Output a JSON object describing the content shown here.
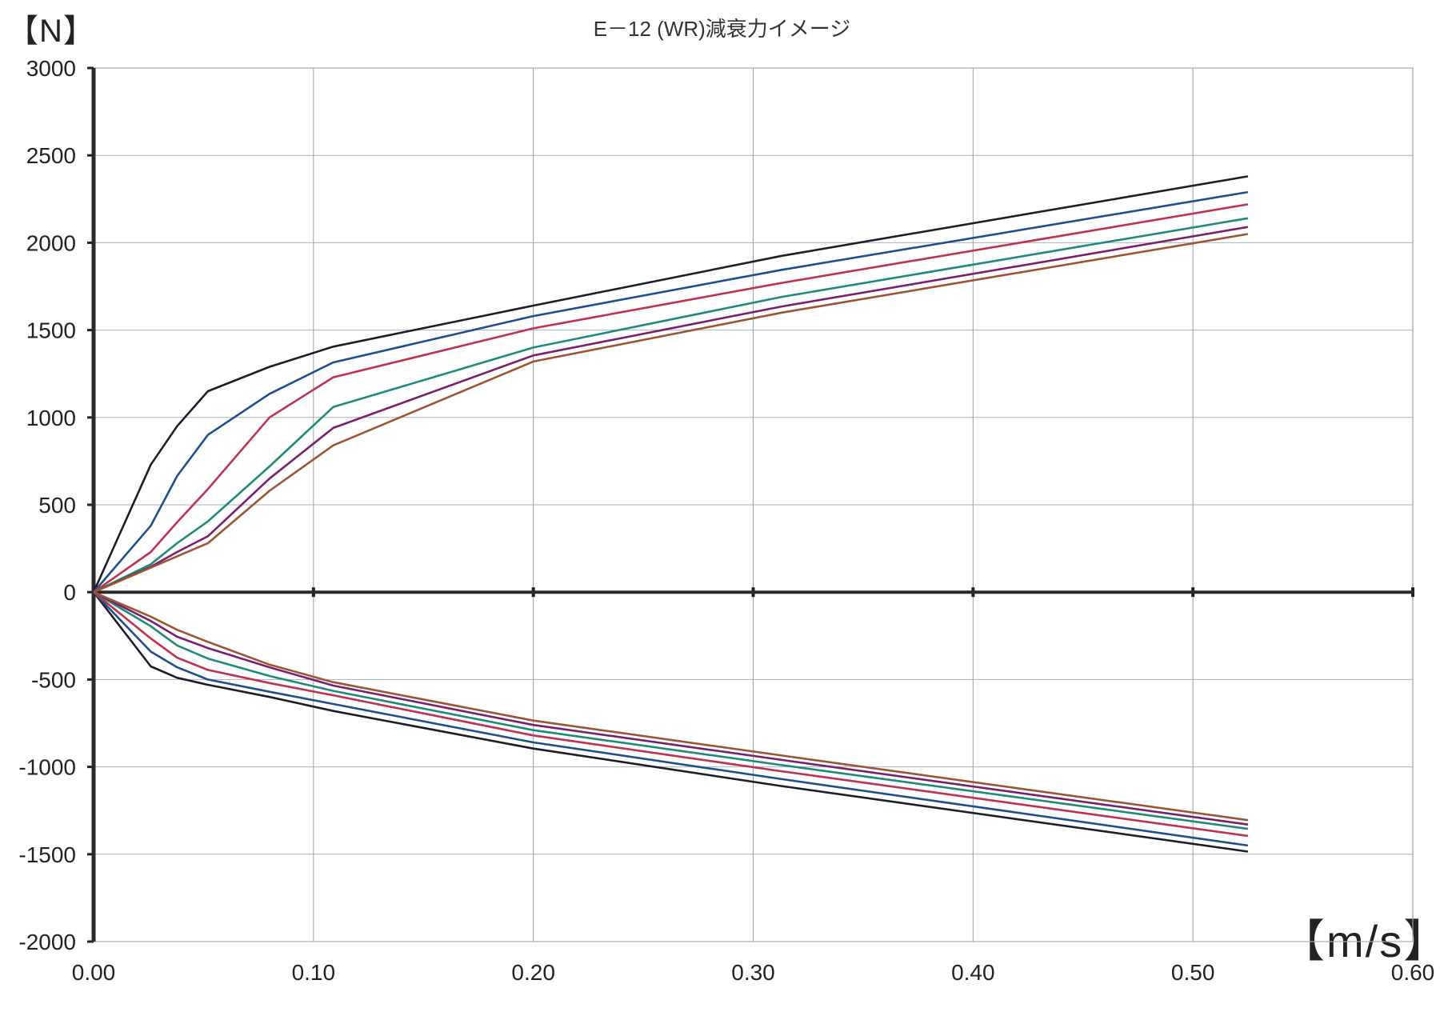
{
  "chart_data": {
    "type": "line",
    "title": "E－12 (WR)減衰力イメージ",
    "ylabel": "【N】",
    "xlabel": "【m/s】",
    "xlim": [
      0,
      0.6
    ],
    "ylim": [
      -2000,
      3000
    ],
    "x_ticks": [
      "0.00",
      "0.10",
      "0.20",
      "0.30",
      "0.40",
      "0.50",
      "0.60"
    ],
    "y_ticks": [
      "3000",
      "2500",
      "2000",
      "1500",
      "1000",
      "500",
      "0",
      "-500",
      "-1000",
      "-1500",
      "-2000"
    ],
    "grid": true,
    "legend": "none",
    "series": [
      {
        "color": "#1e1e2a",
        "x": [
          0,
          0.026,
          0.038,
          0.052,
          0.08,
          0.109,
          0.2,
          0.313,
          0.525
        ],
        "y": [
          0,
          730,
          950,
          1150,
          1290,
          1405,
          1640,
          1925,
          2380
        ]
      },
      {
        "color": "#1f4e8c",
        "x": [
          0,
          0.026,
          0.038,
          0.052,
          0.08,
          0.109,
          0.2,
          0.313,
          0.525
        ],
        "y": [
          0,
          380,
          665,
          900,
          1135,
          1315,
          1580,
          1845,
          2290
        ]
      },
      {
        "color": "#c0304f",
        "x": [
          0,
          0.026,
          0.038,
          0.052,
          0.08,
          0.109,
          0.2,
          0.313,
          0.525
        ],
        "y": [
          0,
          230,
          400,
          590,
          1000,
          1230,
          1510,
          1770,
          2220
        ]
      },
      {
        "color": "#1f8a7a",
        "x": [
          0,
          0.026,
          0.038,
          0.052,
          0.08,
          0.109,
          0.2,
          0.313,
          0.525
        ],
        "y": [
          0,
          160,
          280,
          405,
          720,
          1060,
          1400,
          1690,
          2140
        ]
      },
      {
        "color": "#7a1f6e",
        "x": [
          0,
          0.026,
          0.038,
          0.052,
          0.08,
          0.109,
          0.2,
          0.313,
          0.525
        ],
        "y": [
          0,
          145,
          230,
          320,
          650,
          940,
          1355,
          1635,
          2090
        ]
      },
      {
        "color": "#9c5533",
        "x": [
          0,
          0.026,
          0.038,
          0.052,
          0.08,
          0.109,
          0.2,
          0.313,
          0.525
        ],
        "y": [
          0,
          140,
          205,
          280,
          580,
          840,
          1320,
          1600,
          2050
        ]
      },
      {
        "color": "#1e1e2a",
        "x": [
          0,
          0.026,
          0.038,
          0.052,
          0.08,
          0.109,
          0.2,
          0.313,
          0.525
        ],
        "y": [
          0,
          -425,
          -490,
          -530,
          -600,
          -680,
          -895,
          -1110,
          -1485
        ]
      },
      {
        "color": "#1f4e8c",
        "x": [
          0,
          0.026,
          0.038,
          0.052,
          0.08,
          0.109,
          0.2,
          0.313,
          0.525
        ],
        "y": [
          0,
          -340,
          -430,
          -500,
          -570,
          -640,
          -860,
          -1070,
          -1450
        ]
      },
      {
        "color": "#c0304f",
        "x": [
          0,
          0.026,
          0.038,
          0.052,
          0.08,
          0.109,
          0.2,
          0.313,
          0.525
        ],
        "y": [
          0,
          -265,
          -375,
          -445,
          -520,
          -590,
          -820,
          -1025,
          -1395
        ]
      },
      {
        "color": "#1f8a7a",
        "x": [
          0,
          0.026,
          0.038,
          0.052,
          0.08,
          0.109,
          0.2,
          0.313,
          0.525
        ],
        "y": [
          0,
          -195,
          -305,
          -380,
          -480,
          -565,
          -790,
          -990,
          -1355
        ]
      },
      {
        "color": "#7a1f6e",
        "x": [
          0,
          0.026,
          0.038,
          0.052,
          0.08,
          0.109,
          0.2,
          0.313,
          0.525
        ],
        "y": [
          0,
          -165,
          -255,
          -320,
          -430,
          -535,
          -760,
          -960,
          -1330
        ]
      },
      {
        "color": "#9c5533",
        "x": [
          0,
          0.026,
          0.038,
          0.052,
          0.08,
          0.109,
          0.2,
          0.313,
          0.525
        ],
        "y": [
          0,
          -140,
          -215,
          -285,
          -415,
          -515,
          -735,
          -935,
          -1305
        ]
      }
    ]
  }
}
